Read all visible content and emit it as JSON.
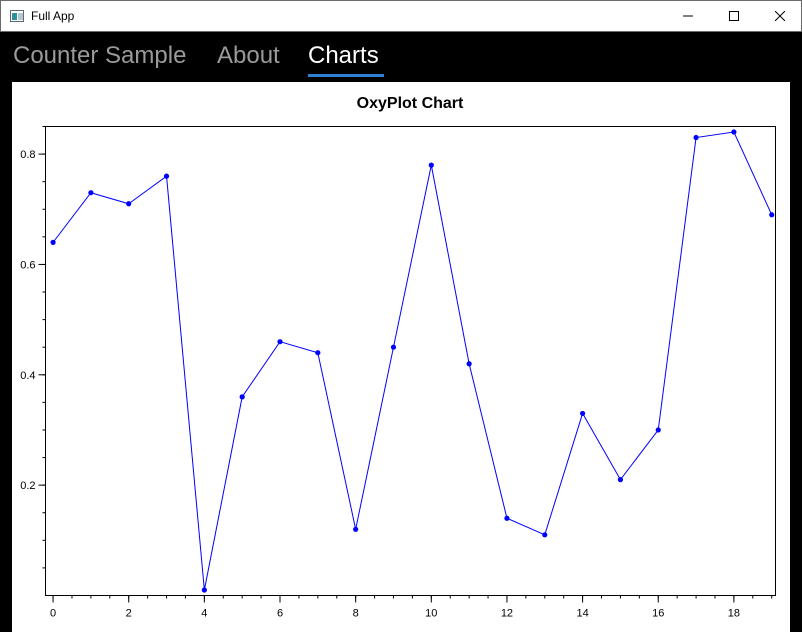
{
  "window": {
    "title": "Full App"
  },
  "nav": {
    "tabs": [
      {
        "label": "Counter Sample"
      },
      {
        "label": "About"
      },
      {
        "label": "Charts"
      }
    ],
    "active_index": 2
  },
  "colors": {
    "series": "#0000ff",
    "active_tab_underline": "#2f7fd6",
    "inactive_tab": "#9a9a9a",
    "active_tab": "#ffffff"
  },
  "chart_data": {
    "type": "line",
    "title": "OxyPlot Chart",
    "xlabel": "",
    "ylabel": "",
    "x": [
      0,
      1,
      2,
      3,
      4,
      5,
      6,
      7,
      8,
      9,
      10,
      11,
      12,
      13,
      14,
      15,
      16,
      17,
      18,
      19
    ],
    "series": [
      {
        "values": [
          0.64,
          0.73,
          0.71,
          0.76,
          0.01,
          0.36,
          0.46,
          0.44,
          0.12,
          0.45,
          0.78,
          0.42,
          0.14,
          0.11,
          0.33,
          0.21,
          0.3,
          0.83,
          0.84,
          0.69
        ]
      }
    ],
    "xlim": [
      -0.2,
      19.1
    ],
    "ylim": [
      0.0,
      0.85
    ],
    "x_ticks": [
      0,
      2,
      4,
      6,
      8,
      10,
      12,
      14,
      16,
      18
    ],
    "x_tick_labels": [
      "0",
      "2",
      "4",
      "6",
      "8",
      "10",
      "12",
      "14",
      "16",
      "18"
    ],
    "y_ticks": [
      0.2,
      0.4,
      0.6,
      0.8
    ],
    "y_tick_labels": [
      "0.2",
      "0.4",
      "0.6",
      "0.8"
    ],
    "grid": false,
    "markers": true
  }
}
